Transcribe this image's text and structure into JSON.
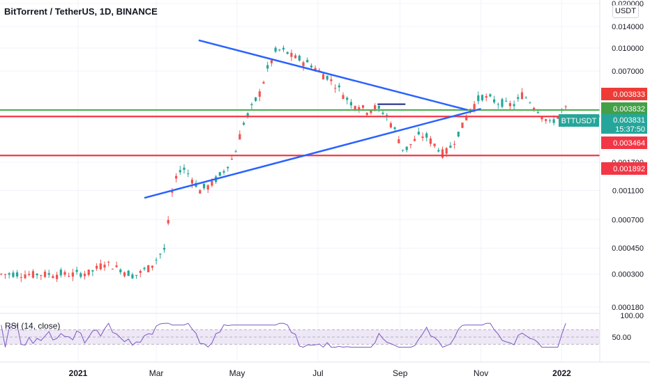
{
  "header": {
    "title": "BitTorrent / TetherUS, 1D, BINANCE",
    "currency": "USDT"
  },
  "chart_data": {
    "type": "candlestick",
    "symbol": "BTTUSDT",
    "scale": "log",
    "price_ticks": [
      0.02,
      0.014,
      0.01,
      0.007,
      0.0017,
      0.0011,
      0.0007,
      0.00045,
      0.0003,
      0.00018
    ],
    "price_tick_labels": [
      "0.020000",
      "0.014000",
      "0.010000",
      "0.007000",
      "0.001700",
      "0.001100",
      "0.000700",
      "0.000450",
      "0.000300",
      "0.000180"
    ],
    "time_labels": [
      "2021",
      "Mar",
      "May",
      "Jul",
      "Sep",
      "Nov",
      "2022"
    ],
    "last_price": {
      "symbol": "BTTUSDT",
      "value": "0.003831",
      "countdown": "15:37:50"
    },
    "price_labels": [
      {
        "value": "0.003833",
        "color": "#ef3b36"
      },
      {
        "value": "0.003832",
        "color": "#43a047"
      }
    ],
    "horizontal_levels": [
      {
        "price": 0.003832,
        "color": "#4caf50",
        "label": "0.003832"
      },
      {
        "price": 0.003464,
        "color": "#f23645",
        "label": "0.003464"
      },
      {
        "price": 0.001892,
        "color": "#f23645",
        "label": "0.001892"
      }
    ],
    "trendlines": [
      {
        "from": [
          "2021-04-02",
          0.0113
        ],
        "to": [
          "2021-10-22",
          0.00383
        ],
        "color": "#2962ff"
      },
      {
        "from": [
          "2021-02-20",
          0.00098
        ],
        "to": [
          "2021-11-01",
          0.0039
        ],
        "color": "#2962ff"
      },
      {
        "from": [
          "2021-08-15",
          0.00419
        ],
        "to": [
          "2021-09-05",
          0.00419
        ],
        "color": "#1a237e"
      }
    ],
    "rsi": {
      "label": "RSI (14, close)",
      "upper_label": "100.00",
      "mid_label": "50.00",
      "levels": [
        70,
        50,
        30
      ]
    },
    "colors": {
      "up": "#26a69a",
      "down": "#ef5350",
      "trendline": "#2962ff",
      "rsi_line": "#7e57c2",
      "rsi_band": "#ede7f6"
    }
  }
}
